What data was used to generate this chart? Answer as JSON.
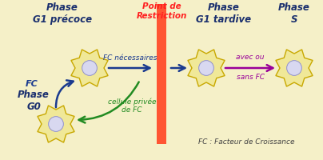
{
  "bg_color": "#f5f0c8",
  "title_restriction": "Point de\nRestriction",
  "title_restriction_color": "#ff2020",
  "phase_g1_precoce": "Phase\nG1 précoce",
  "phase_g1_tardive": "Phase\nG1 tardive",
  "phase_s": "Phase\nS",
  "phase_g0": "Phase\nG0",
  "label_fc": "FC",
  "label_fc_necessaires": "FC nécessaires",
  "label_cellule_privee": "cellule privée\nde FC",
  "label_avec_ou": "avec ou",
  "label_sans_fc": "sans FC",
  "label_fc_facteur": "FC : Facteur de Croissance",
  "phase_color": "#1a2f6e",
  "arrow_blue_color": "#1a3a8f",
  "arrow_green_color": "#228b22",
  "arrow_purple_color": "#990099",
  "restriction_bar_color": "#ff5533",
  "cell_body_color": "#f0e898",
  "cell_body_edge": "#c8a800",
  "cell_nucleus_color": "#d8d8f0",
  "cell_nucleus_edge": "#9090cc",
  "note_color": "#444444"
}
